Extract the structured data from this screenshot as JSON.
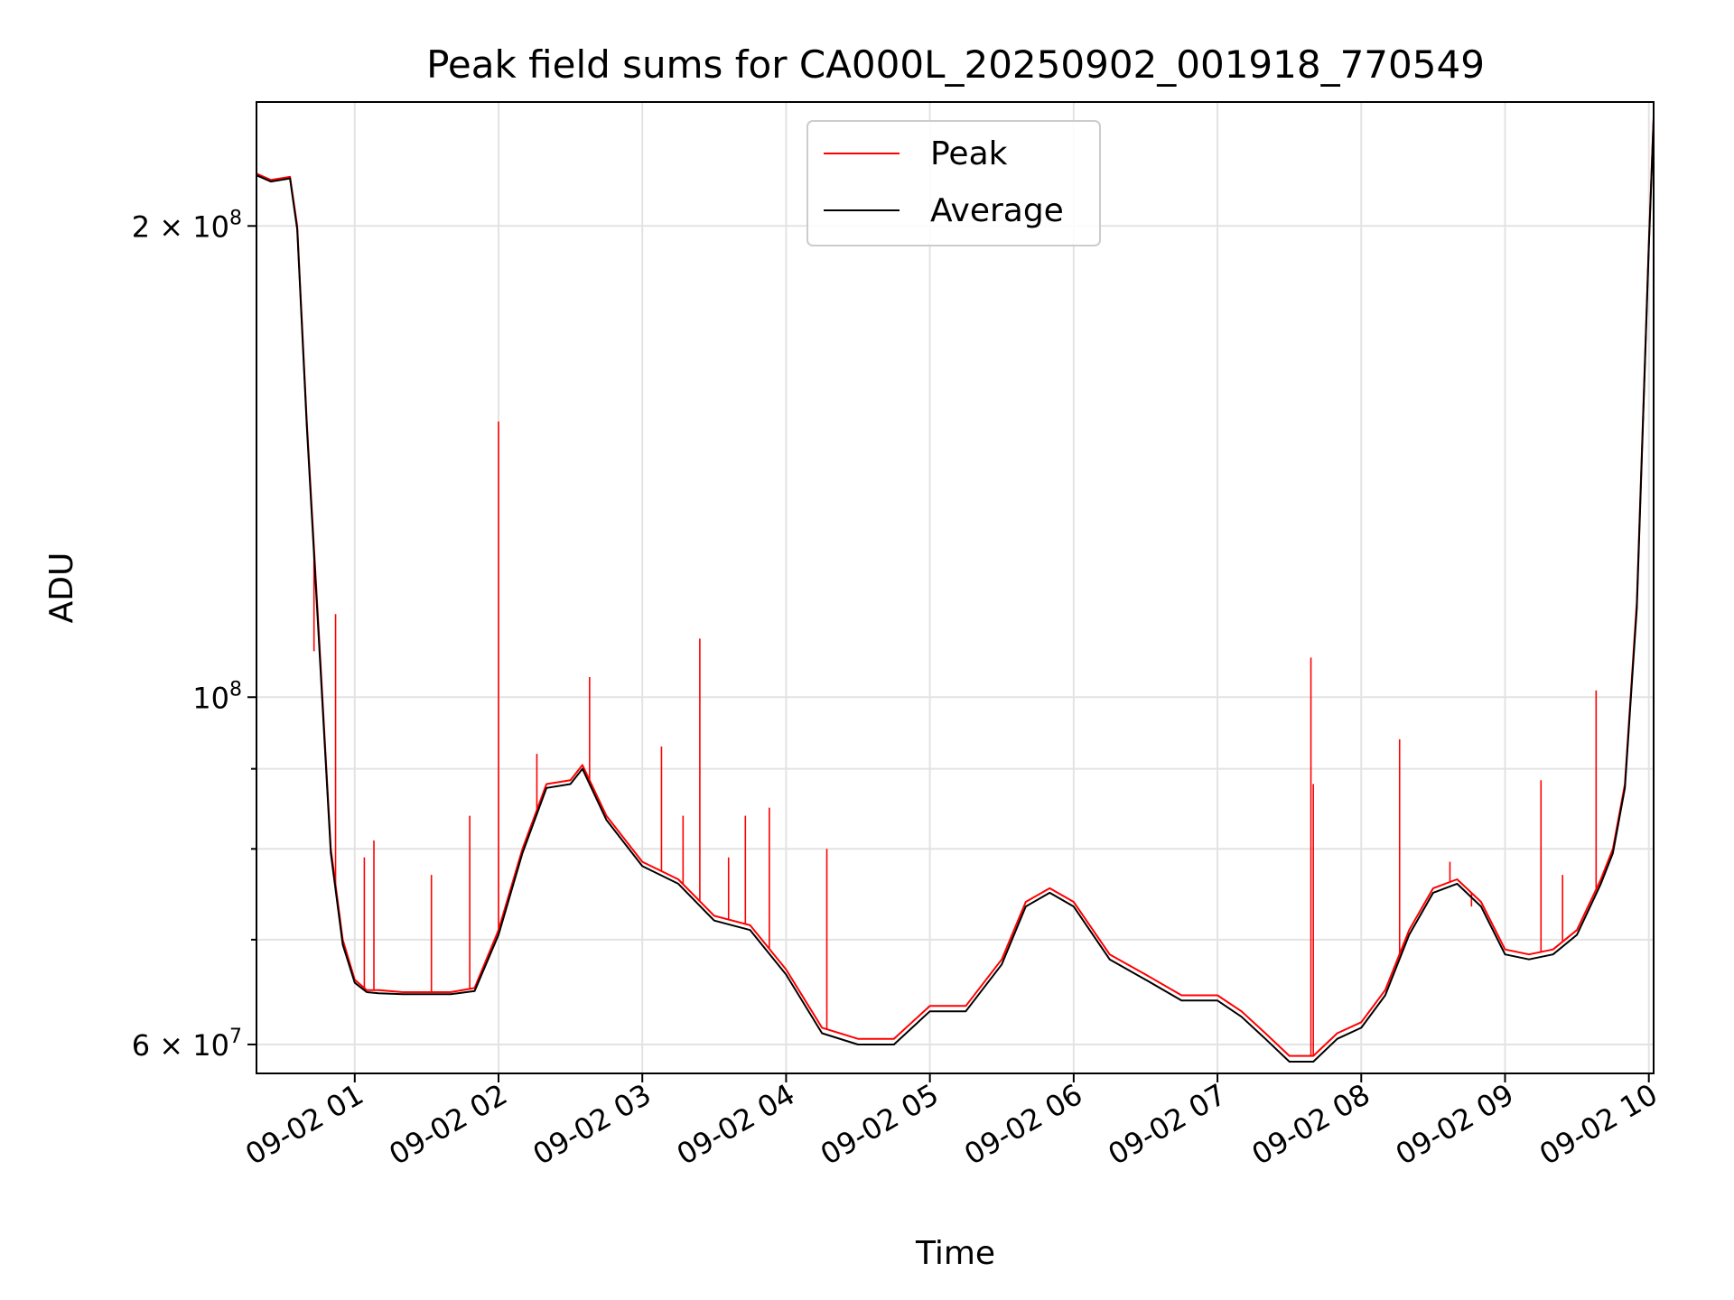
{
  "chart_data": {
    "type": "line",
    "title": "Peak field sums for CA000L_20250902_001918_770549",
    "xlabel": "Time",
    "ylabel": "ADU",
    "y_scale": "log",
    "ylim": [
      57500000,
      240000000
    ],
    "xlim": [
      "2025-09-02 00:19",
      "2025-09-02 10:02"
    ],
    "grid": true,
    "legend": {
      "position": "top-center"
    },
    "x_ticks": [
      "09-02 01",
      "09-02 02",
      "09-02 03",
      "09-02 04",
      "09-02 05",
      "09-02 06",
      "09-02 07",
      "09-02 08",
      "09-02 09",
      "09-02 10"
    ],
    "y_ticks": [
      {
        "value": 200000000,
        "mant": "2 × 10",
        "exp": "8"
      },
      {
        "value": 100000000,
        "mant": "10",
        "exp": "8"
      },
      {
        "value": 60000000,
        "mant": "6 × 10",
        "exp": "7"
      }
    ],
    "series": [
      {
        "name": "Peak",
        "color": "#ff0000",
        "x": [
          "2025-09-02 00:19",
          "2025-09-02 00:25",
          "2025-09-02 00:33",
          "2025-09-02 00:36",
          "2025-09-02 00:40",
          "2025-09-02 00:45",
          "2025-09-02 00:50",
          "2025-09-02 00:55",
          "2025-09-02 01:00",
          "2025-09-02 01:05",
          "2025-09-02 01:10",
          "2025-09-02 01:20",
          "2025-09-02 01:30",
          "2025-09-02 01:40",
          "2025-09-02 01:50",
          "2025-09-02 02:00",
          "2025-09-02 02:10",
          "2025-09-02 02:20",
          "2025-09-02 02:30",
          "2025-09-02 02:35",
          "2025-09-02 02:45",
          "2025-09-02 03:00",
          "2025-09-02 03:15",
          "2025-09-02 03:30",
          "2025-09-02 03:45",
          "2025-09-02 04:00",
          "2025-09-02 04:15",
          "2025-09-02 04:30",
          "2025-09-02 04:45",
          "2025-09-02 05:00",
          "2025-09-02 05:15",
          "2025-09-02 05:30",
          "2025-09-02 05:40",
          "2025-09-02 05:50",
          "2025-09-02 06:00",
          "2025-09-02 06:15",
          "2025-09-02 06:30",
          "2025-09-02 06:45",
          "2025-09-02 07:00",
          "2025-09-02 07:10",
          "2025-09-02 07:20",
          "2025-09-02 07:30",
          "2025-09-02 07:40",
          "2025-09-02 07:50",
          "2025-09-02 08:00",
          "2025-09-02 08:10",
          "2025-09-02 08:20",
          "2025-09-02 08:30",
          "2025-09-02 08:40",
          "2025-09-02 08:50",
          "2025-09-02 09:00",
          "2025-09-02 09:10",
          "2025-09-02 09:20",
          "2025-09-02 09:30",
          "2025-09-02 09:40",
          "2025-09-02 09:45",
          "2025-09-02 09:50",
          "2025-09-02 09:55",
          "2025-09-02 10:00",
          "2025-09-02 10:02"
        ],
        "y": [
          216000000,
          214000000,
          215000000,
          200000000,
          150000000,
          110000000,
          80000000,
          70000000,
          66000000,
          65000000,
          65000000,
          64800000,
          64800000,
          64800000,
          65200000,
          71000000,
          80000000,
          88000000,
          88500000,
          90500000,
          84000000,
          78500000,
          76500000,
          72500000,
          71500000,
          67000000,
          61500000,
          60500000,
          60500000,
          63500000,
          63500000,
          68000000,
          74000000,
          75500000,
          74000000,
          68500000,
          66500000,
          64500000,
          64500000,
          63000000,
          61000000,
          59000000,
          59000000,
          61000000,
          62000000,
          65000000,
          71000000,
          75500000,
          76500000,
          74000000,
          69000000,
          68500000,
          69000000,
          71000000,
          76500000,
          80000000,
          88000000,
          115000000,
          195000000,
          235000000
        ],
        "spikes": [
          {
            "x": "2025-09-02 00:43",
            "y": 107000000
          },
          {
            "x": "2025-09-02 00:52",
            "y": 113000000
          },
          {
            "x": "2025-09-02 01:04",
            "y": 79000000
          },
          {
            "x": "2025-09-02 01:08",
            "y": 81000000
          },
          {
            "x": "2025-09-02 01:32",
            "y": 77000000
          },
          {
            "x": "2025-09-02 01:48",
            "y": 84000000
          },
          {
            "x": "2025-09-02 02:00",
            "y": 150000000
          },
          {
            "x": "2025-09-02 02:16",
            "y": 92000000
          },
          {
            "x": "2025-09-02 02:38",
            "y": 103000000
          },
          {
            "x": "2025-09-02 03:08",
            "y": 93000000
          },
          {
            "x": "2025-09-02 03:17",
            "y": 84000000
          },
          {
            "x": "2025-09-02 03:24",
            "y": 109000000
          },
          {
            "x": "2025-09-02 03:36",
            "y": 79000000
          },
          {
            "x": "2025-09-02 03:43",
            "y": 84000000
          },
          {
            "x": "2025-09-02 03:53",
            "y": 85000000
          },
          {
            "x": "2025-09-02 04:17",
            "y": 80000000
          },
          {
            "x": "2025-09-02 07:39",
            "y": 106000000
          },
          {
            "x": "2025-09-02 07:40",
            "y": 88000000
          },
          {
            "x": "2025-09-02 08:16",
            "y": 94000000
          },
          {
            "x": "2025-09-02 08:37",
            "y": 78500000
          },
          {
            "x": "2025-09-02 08:46",
            "y": 73500000
          },
          {
            "x": "2025-09-02 09:15",
            "y": 88500000
          },
          {
            "x": "2025-09-02 09:24",
            "y": 77000000
          },
          {
            "x": "2025-09-02 09:38",
            "y": 101000000
          }
        ]
      },
      {
        "name": "Average",
        "color": "#000000",
        "x": [
          "2025-09-02 00:19",
          "2025-09-02 00:25",
          "2025-09-02 00:33",
          "2025-09-02 00:36",
          "2025-09-02 00:40",
          "2025-09-02 00:45",
          "2025-09-02 00:50",
          "2025-09-02 00:55",
          "2025-09-02 01:00",
          "2025-09-02 01:05",
          "2025-09-02 01:10",
          "2025-09-02 01:20",
          "2025-09-02 01:30",
          "2025-09-02 01:40",
          "2025-09-02 01:50",
          "2025-09-02 02:00",
          "2025-09-02 02:10",
          "2025-09-02 02:20",
          "2025-09-02 02:30",
          "2025-09-02 02:35",
          "2025-09-02 02:45",
          "2025-09-02 03:00",
          "2025-09-02 03:15",
          "2025-09-02 03:30",
          "2025-09-02 03:45",
          "2025-09-02 04:00",
          "2025-09-02 04:15",
          "2025-09-02 04:30",
          "2025-09-02 04:45",
          "2025-09-02 05:00",
          "2025-09-02 05:15",
          "2025-09-02 05:30",
          "2025-09-02 05:40",
          "2025-09-02 05:50",
          "2025-09-02 06:00",
          "2025-09-02 06:15",
          "2025-09-02 06:30",
          "2025-09-02 06:45",
          "2025-09-02 07:00",
          "2025-09-02 07:10",
          "2025-09-02 07:20",
          "2025-09-02 07:30",
          "2025-09-02 07:40",
          "2025-09-02 07:50",
          "2025-09-02 08:00",
          "2025-09-02 08:10",
          "2025-09-02 08:20",
          "2025-09-02 08:30",
          "2025-09-02 08:40",
          "2025-09-02 08:50",
          "2025-09-02 09:00",
          "2025-09-02 09:10",
          "2025-09-02 09:20",
          "2025-09-02 09:30",
          "2025-09-02 09:40",
          "2025-09-02 09:45",
          "2025-09-02 09:50",
          "2025-09-02 09:55",
          "2025-09-02 10:00",
          "2025-09-02 10:02"
        ],
        "y": [
          215500000,
          213500000,
          214500000,
          199000000,
          149000000,
          109000000,
          79500000,
          69500000,
          65700000,
          64800000,
          64700000,
          64600000,
          64600000,
          64600000,
          64900000,
          70500000,
          79500000,
          87500000,
          88000000,
          90000000,
          83500000,
          78000000,
          76000000,
          72000000,
          71000000,
          66500000,
          61000000,
          60000000,
          60000000,
          63000000,
          63000000,
          67500000,
          73500000,
          75000000,
          73500000,
          68000000,
          66000000,
          64000000,
          64000000,
          62500000,
          60500000,
          58500000,
          58500000,
          60500000,
          61500000,
          64500000,
          70500000,
          75000000,
          76000000,
          73500000,
          68500000,
          68000000,
          68500000,
          70500000,
          76000000,
          79500000,
          87500000,
          114000000,
          194000000,
          234000000
        ],
        "spikes": []
      }
    ]
  }
}
